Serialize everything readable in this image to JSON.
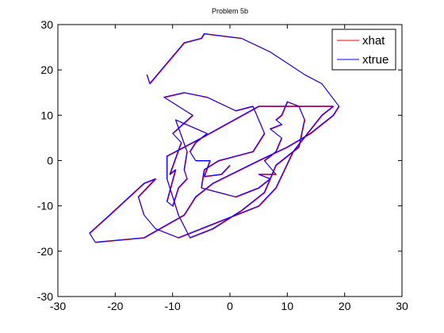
{
  "chart_data": {
    "type": "line",
    "title": "Problem 5b",
    "xlabel": "",
    "ylabel": "",
    "xlim": [
      -30,
      30
    ],
    "ylim": [
      -30,
      30
    ],
    "xticks": [
      -30,
      -20,
      -10,
      0,
      10,
      20,
      30
    ],
    "yticks": [
      -30,
      -20,
      -10,
      0,
      10,
      20,
      30
    ],
    "xtick_labels": [
      "-30",
      "-20",
      "-10",
      "0",
      "10",
      "20",
      "30"
    ],
    "ytick_labels": [
      "-30",
      "-20",
      "-10",
      "0",
      "10",
      "20",
      "30"
    ],
    "grid": false,
    "legend_position": "top-right",
    "series": [
      {
        "name": "xhat",
        "color": "#ff0000",
        "x": [
          0,
          -1.5,
          -4.5,
          -3.5,
          -6,
          -7,
          -6,
          -4,
          -9.5,
          -7.5,
          -8,
          -7.5,
          -9,
          -10,
          -11,
          -9.5,
          -10.5,
          -8.5,
          -10,
          -6.5,
          -11.5,
          -8,
          -4,
          1,
          4,
          6,
          5,
          4,
          1,
          -2,
          -4.5,
          -5,
          -2,
          1,
          3,
          5,
          7,
          5,
          8,
          6,
          8,
          9,
          7,
          9,
          8,
          9,
          10,
          12,
          13,
          12,
          8,
          6,
          2,
          -3,
          -7,
          -9,
          -10,
          -11,
          -11,
          -5,
          5,
          12,
          18,
          16,
          11,
          8,
          5,
          -5,
          -9,
          -13,
          -15,
          -16,
          -13,
          -15,
          -21,
          -24.5,
          -23.5,
          -15,
          -8,
          -6,
          -3,
          5,
          10,
          14,
          18,
          19,
          16,
          13,
          7,
          2,
          -4.5,
          -5,
          -8,
          -12,
          -14,
          -14.5
        ],
        "y": [
          -1,
          -3,
          -3.5,
          0,
          0,
          2,
          4,
          6,
          9,
          2,
          -2,
          -4,
          -6,
          -10,
          -9,
          -2,
          -3,
          4,
          6,
          10,
          14,
          15,
          14,
          11,
          12,
          6,
          4,
          2,
          1,
          0,
          -2,
          -6,
          -7,
          -8,
          -7,
          -6,
          -4,
          -3,
          -3,
          0,
          2,
          5,
          7,
          8,
          9,
          10,
          13,
          12,
          9,
          3,
          -1,
          -7,
          -11,
          -15,
          -17,
          -12,
          -8,
          -4,
          1,
          5,
          12,
          12,
          12,
          10,
          2,
          -6,
          -10,
          -15,
          -17,
          -15,
          -12,
          -8,
          -4,
          -5,
          -12,
          -16,
          -18,
          -17,
          -12,
          -8,
          -5,
          0,
          3,
          6,
          10,
          12,
          17,
          19,
          24,
          27,
          28,
          27,
          26,
          20,
          17,
          19
        ]
      },
      {
        "name": "xtrue",
        "color": "#0000ff",
        "x": [
          0,
          -1.5,
          -4.5,
          -3.5,
          -6,
          -7,
          -6,
          -4,
          -9.5,
          -7.5,
          -8,
          -7.5,
          -9,
          -10,
          -11,
          -9.5,
          -10.5,
          -8.5,
          -10,
          -6.5,
          -11.5,
          -8,
          -4,
          1,
          4,
          6,
          5,
          4,
          1,
          -2,
          -4.5,
          -5,
          -2,
          1,
          3,
          5,
          7,
          5,
          8,
          6,
          8,
          9,
          7,
          9,
          8,
          9,
          10,
          12,
          13,
          12,
          8,
          6,
          2,
          -3,
          -7,
          -9,
          -10,
          -11,
          -11,
          -5,
          5,
          12,
          18,
          16,
          11,
          8,
          5,
          -5,
          -9,
          -13,
          -15,
          -16,
          -13,
          -15,
          -21,
          -24.5,
          -23.5,
          -15,
          -8,
          -6,
          -3,
          5,
          10,
          14,
          18,
          19,
          16,
          13,
          7,
          2,
          -4.5,
          -5,
          -8,
          -12,
          -14,
          -14.5
        ],
        "y": [
          -1,
          -3,
          -3.5,
          0,
          0,
          2,
          4,
          6,
          9,
          2,
          -2,
          -4,
          -6,
          -10,
          -9,
          -2,
          -3,
          4,
          6,
          10,
          14,
          15,
          14,
          11,
          12,
          6,
          4,
          2,
          1,
          0,
          -2,
          -6,
          -7,
          -8,
          -7,
          -6,
          -4,
          -3,
          -3,
          0,
          2,
          5,
          7,
          8,
          9,
          10,
          13,
          12,
          9,
          3,
          -1,
          -7,
          -11,
          -15,
          -17,
          -12,
          -8,
          -4,
          1,
          5,
          12,
          12,
          12,
          10,
          2,
          -6,
          -10,
          -15,
          -17,
          -15,
          -12,
          -8,
          -4,
          -5,
          -12,
          -16,
          -18,
          -17,
          -12,
          -8,
          -5,
          0,
          3,
          6,
          10,
          12,
          17,
          19,
          24,
          27,
          28,
          27,
          26,
          20,
          17,
          19
        ]
      }
    ]
  }
}
